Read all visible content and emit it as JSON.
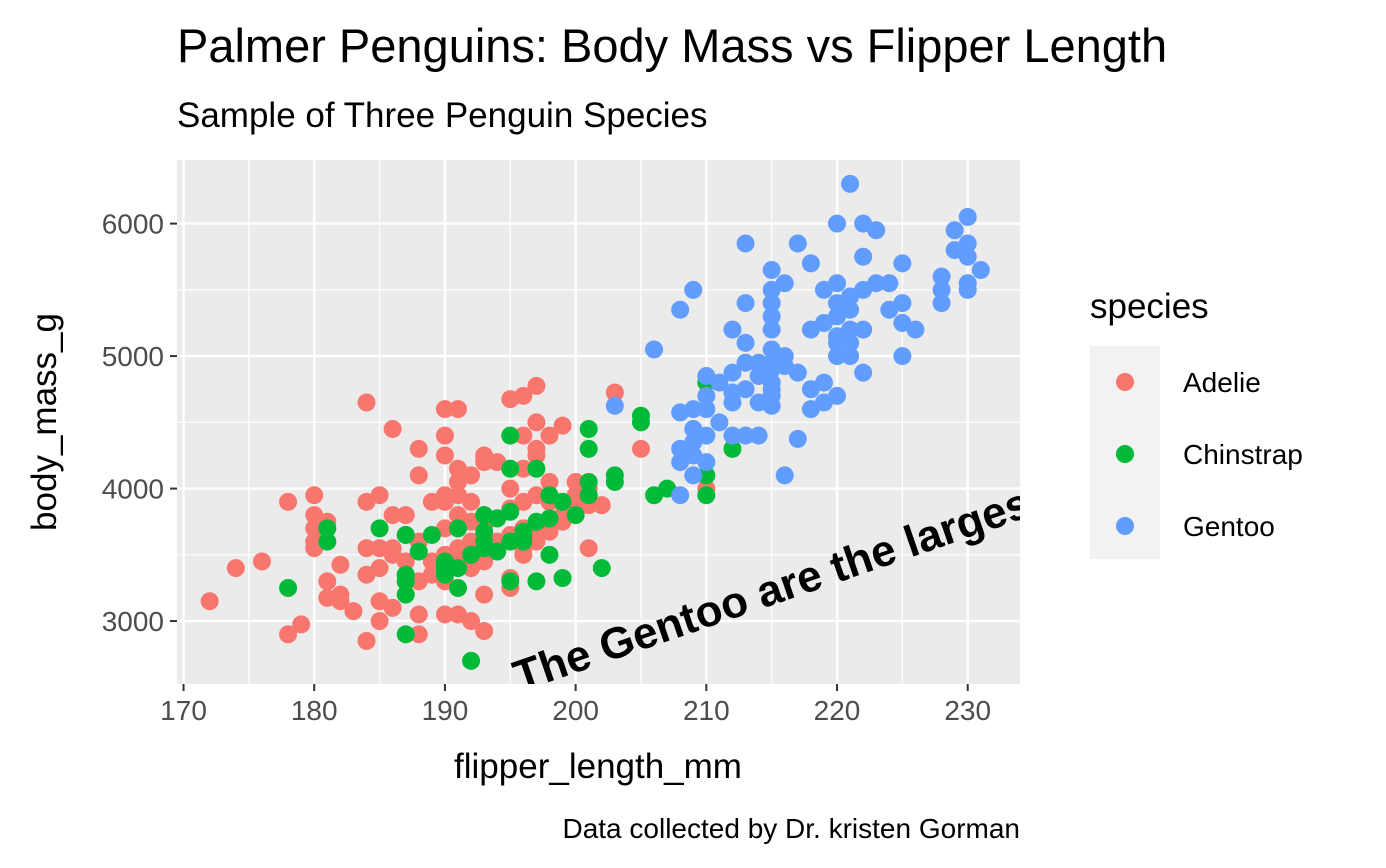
{
  "chart_data": {
    "type": "scatter",
    "title": "Palmer Penguins: Body Mass vs Flipper Length",
    "subtitle": "Sample of Three Penguin Species",
    "xlabel": "flipper_length_mm",
    "ylabel": "body_mass_g",
    "caption": "Data collected by Dr. kristen Gorman",
    "annotation": "The Gentoo are the largest penguins",
    "xlim": [
      169.5,
      234
    ],
    "ylim": [
      2525,
      6480
    ],
    "x_ticks": [
      "170",
      "180",
      "190",
      "200",
      "210",
      "220",
      "230"
    ],
    "y_ticks": [
      "3000",
      "4000",
      "5000",
      "6000"
    ],
    "grid": true,
    "legend": {
      "title": "species",
      "position": "right"
    },
    "colors": {
      "Adelie": "#F8766D",
      "Chinstrap": "#00BA38",
      "Gentoo": "#619CFF",
      "panel": "#EBEBEB",
      "grid": "#FFFFFF",
      "legend_key": "#F2F2F2"
    },
    "series": [
      {
        "name": "Adelie",
        "color": "#F8766D",
        "points": [
          [
            172,
            3150
          ],
          [
            174,
            3400
          ],
          [
            176,
            3450
          ],
          [
            178,
            3900
          ],
          [
            178,
            2900
          ],
          [
            179,
            2975
          ],
          [
            180,
            3950
          ],
          [
            180,
            3800
          ],
          [
            180,
            3700
          ],
          [
            180,
            3600
          ],
          [
            180,
            3550
          ],
          [
            181,
            3300
          ],
          [
            181,
            3175
          ],
          [
            181,
            3750
          ],
          [
            182,
            3200
          ],
          [
            182,
            3150
          ],
          [
            182,
            3425
          ],
          [
            183,
            3075
          ],
          [
            184,
            4650
          ],
          [
            184,
            3900
          ],
          [
            184,
            3550
          ],
          [
            184,
            3350
          ],
          [
            184,
            2850
          ],
          [
            185,
            3950
          ],
          [
            185,
            3550
          ],
          [
            185,
            3400
          ],
          [
            185,
            3150
          ],
          [
            185,
            3000
          ],
          [
            186,
            4450
          ],
          [
            186,
            3800
          ],
          [
            186,
            3550
          ],
          [
            186,
            3500
          ],
          [
            186,
            3100
          ],
          [
            187,
            3800
          ],
          [
            187,
            3650
          ],
          [
            187,
            3450
          ],
          [
            187,
            3350
          ],
          [
            187,
            3300
          ],
          [
            188,
            4300
          ],
          [
            188,
            4100
          ],
          [
            188,
            3600
          ],
          [
            188,
            3300
          ],
          [
            188,
            3050
          ],
          [
            188,
            2900
          ],
          [
            189,
            3900
          ],
          [
            189,
            3450
          ],
          [
            189,
            3350
          ],
          [
            190,
            4600
          ],
          [
            190,
            4400
          ],
          [
            190,
            4250
          ],
          [
            190,
            3950
          ],
          [
            190,
            3900
          ],
          [
            190,
            3700
          ],
          [
            190,
            3500
          ],
          [
            190,
            3450
          ],
          [
            190,
            3300
          ],
          [
            190,
            3050
          ],
          [
            191,
            4600
          ],
          [
            191,
            4150
          ],
          [
            191,
            4050
          ],
          [
            191,
            3950
          ],
          [
            191,
            3800
          ],
          [
            191,
            3700
          ],
          [
            191,
            3550
          ],
          [
            191,
            3450
          ],
          [
            191,
            3050
          ],
          [
            192,
            4100
          ],
          [
            192,
            3900
          ],
          [
            192,
            3750
          ],
          [
            192,
            3600
          ],
          [
            192,
            3400
          ],
          [
            192,
            3000
          ],
          [
            193,
            4250
          ],
          [
            193,
            4200
          ],
          [
            193,
            3800
          ],
          [
            193,
            3725
          ],
          [
            193,
            3450
          ],
          [
            193,
            3200
          ],
          [
            193,
            2925
          ],
          [
            194,
            4200
          ],
          [
            194,
            3775
          ],
          [
            194,
            3600
          ],
          [
            195,
            4675
          ],
          [
            195,
            4000
          ],
          [
            195,
            3850
          ],
          [
            195,
            3650
          ],
          [
            195,
            3325
          ],
          [
            195,
            3250
          ],
          [
            196,
            4700
          ],
          [
            196,
            4400
          ],
          [
            196,
            4150
          ],
          [
            196,
            3900
          ],
          [
            196,
            3700
          ],
          [
            196,
            3550
          ],
          [
            196,
            3500
          ],
          [
            197,
            4775
          ],
          [
            197,
            4500
          ],
          [
            197,
            4300
          ],
          [
            197,
            4250
          ],
          [
            197,
            3950
          ],
          [
            197,
            3725
          ],
          [
            197,
            3600
          ],
          [
            198,
            4400
          ],
          [
            198,
            4050
          ],
          [
            198,
            3950
          ],
          [
            198,
            3900
          ],
          [
            198,
            3675
          ],
          [
            199,
            4475
          ],
          [
            199,
            3800
          ],
          [
            199,
            3750
          ],
          [
            200,
            4050
          ],
          [
            200,
            3950
          ],
          [
            200,
            3900
          ],
          [
            201,
            4000
          ],
          [
            201,
            3550
          ],
          [
            201,
            3875
          ],
          [
            202,
            3875
          ],
          [
            203,
            4725
          ],
          [
            205,
            4300
          ],
          [
            210,
            4000
          ]
        ]
      },
      {
        "name": "Chinstrap",
        "color": "#00BA38",
        "points": [
          [
            178,
            3250
          ],
          [
            181,
            3700
          ],
          [
            181,
            3600
          ],
          [
            185,
            3700
          ],
          [
            187,
            3650
          ],
          [
            187,
            3350
          ],
          [
            187,
            3300
          ],
          [
            187,
            3200
          ],
          [
            187,
            2900
          ],
          [
            188,
            3525
          ],
          [
            189,
            3650
          ],
          [
            190,
            3450
          ],
          [
            190,
            3400
          ],
          [
            190,
            3350
          ],
          [
            191,
            3700
          ],
          [
            191,
            3400
          ],
          [
            191,
            3250
          ],
          [
            192,
            3500
          ],
          [
            192,
            2700
          ],
          [
            193,
            3800
          ],
          [
            193,
            3675
          ],
          [
            193,
            3600
          ],
          [
            193,
            3550
          ],
          [
            194,
            3775
          ],
          [
            194,
            3525
          ],
          [
            195,
            4400
          ],
          [
            195,
            4150
          ],
          [
            195,
            3825
          ],
          [
            195,
            3600
          ],
          [
            195,
            3300
          ],
          [
            196,
            3675
          ],
          [
            196,
            3650
          ],
          [
            196,
            3600
          ],
          [
            197,
            4150
          ],
          [
            197,
            3750
          ],
          [
            197,
            3300
          ],
          [
            198,
            3950
          ],
          [
            198,
            3775
          ],
          [
            198,
            3500
          ],
          [
            199,
            3325
          ],
          [
            199,
            3900
          ],
          [
            200,
            3800
          ],
          [
            201,
            4450
          ],
          [
            201,
            4300
          ],
          [
            201,
            4050
          ],
          [
            201,
            3950
          ],
          [
            202,
            3400
          ],
          [
            203,
            4100
          ],
          [
            203,
            4050
          ],
          [
            205,
            4550
          ],
          [
            205,
            4500
          ],
          [
            206,
            3950
          ],
          [
            207,
            4000
          ],
          [
            210,
            4800
          ],
          [
            210,
            4100
          ],
          [
            210,
            3950
          ],
          [
            212,
            4300
          ]
        ]
      },
      {
        "name": "Gentoo",
        "color": "#619CFF",
        "points": [
          [
            203,
            4625
          ],
          [
            206,
            5050
          ],
          [
            208,
            5350
          ],
          [
            208,
            4575
          ],
          [
            208,
            4300
          ],
          [
            208,
            4200
          ],
          [
            208,
            3950
          ],
          [
            209,
            5500
          ],
          [
            209,
            4600
          ],
          [
            209,
            4450
          ],
          [
            209,
            4350
          ],
          [
            209,
            4250
          ],
          [
            209,
            4100
          ],
          [
            210,
            4850
          ],
          [
            210,
            4700
          ],
          [
            210,
            4600
          ],
          [
            210,
            4400
          ],
          [
            210,
            4200
          ],
          [
            211,
            4800
          ],
          [
            211,
            4500
          ],
          [
            212,
            5200
          ],
          [
            212,
            4875
          ],
          [
            212,
            4725
          ],
          [
            212,
            4650
          ],
          [
            212,
            4400
          ],
          [
            213,
            5850
          ],
          [
            213,
            5400
          ],
          [
            213,
            5100
          ],
          [
            213,
            4950
          ],
          [
            213,
            4750
          ],
          [
            213,
            4400
          ],
          [
            214,
            4950
          ],
          [
            214,
            4850
          ],
          [
            214,
            4650
          ],
          [
            214,
            4400
          ],
          [
            215,
            5650
          ],
          [
            215,
            5500
          ],
          [
            215,
            5400
          ],
          [
            215,
            5300
          ],
          [
            215,
            5200
          ],
          [
            215,
            5050
          ],
          [
            215,
            4950
          ],
          [
            215,
            4900
          ],
          [
            215,
            4800
          ],
          [
            215,
            4750
          ],
          [
            215,
            4700
          ],
          [
            215,
            4625
          ],
          [
            216,
            5550
          ],
          [
            216,
            5000
          ],
          [
            216,
            4925
          ],
          [
            216,
            4100
          ],
          [
            217,
            5850
          ],
          [
            217,
            4875
          ],
          [
            217,
            4375
          ],
          [
            218,
            5700
          ],
          [
            218,
            5200
          ],
          [
            218,
            4750
          ],
          [
            218,
            4600
          ],
          [
            219,
            5500
          ],
          [
            219,
            5250
          ],
          [
            219,
            4800
          ],
          [
            219,
            4650
          ],
          [
            220,
            6000
          ],
          [
            220,
            5550
          ],
          [
            220,
            5400
          ],
          [
            220,
            5300
          ],
          [
            220,
            5150
          ],
          [
            220,
            5100
          ],
          [
            220,
            5000
          ],
          [
            220,
            4700
          ],
          [
            221,
            6300
          ],
          [
            221,
            5450
          ],
          [
            221,
            5350
          ],
          [
            221,
            5200
          ],
          [
            221,
            5100
          ],
          [
            221,
            5000
          ],
          [
            222,
            6000
          ],
          [
            222,
            5750
          ],
          [
            222,
            5500
          ],
          [
            222,
            5200
          ],
          [
            222,
            4875
          ],
          [
            223,
            5950
          ],
          [
            223,
            5550
          ],
          [
            224,
            5550
          ],
          [
            224,
            5350
          ],
          [
            225,
            5700
          ],
          [
            225,
            5400
          ],
          [
            225,
            5250
          ],
          [
            225,
            5000
          ],
          [
            226,
            5200
          ],
          [
            228,
            5600
          ],
          [
            228,
            5500
          ],
          [
            228,
            5400
          ],
          [
            229,
            5950
          ],
          [
            229,
            5800
          ],
          [
            230,
            6050
          ],
          [
            230,
            5850
          ],
          [
            230,
            5750
          ],
          [
            230,
            5550
          ],
          [
            230,
            5500
          ],
          [
            231,
            5650
          ]
        ]
      }
    ]
  }
}
